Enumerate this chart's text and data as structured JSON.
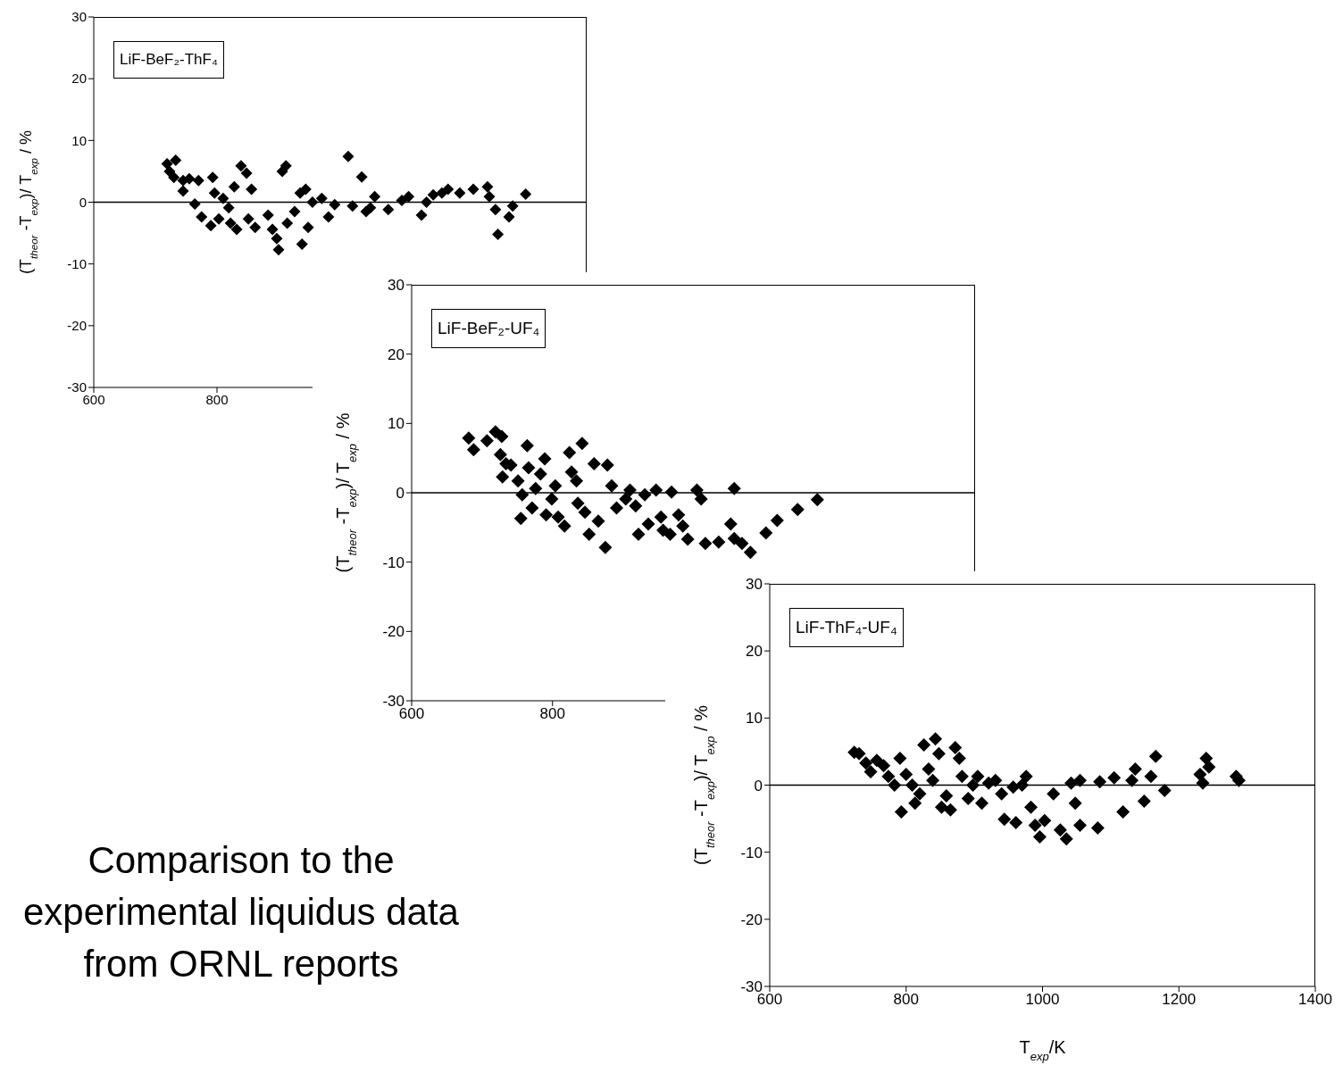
{
  "chart_data": [
    {
      "type": "scatter",
      "title": "LiF-BeF₂-ThF₄",
      "ylabel": "(T$_{theor}$ -T$_{exp}$)/ T$_{exp}$ / %",
      "color": "#000000",
      "marker": "diamond",
      "x": [
        719,
        733,
        723,
        730,
        745,
        755,
        770,
        745,
        764,
        775,
        793,
        796,
        790,
        803,
        810,
        819,
        828,
        822,
        832,
        839,
        848,
        856,
        862,
        851,
        883,
        890,
        897,
        900,
        906,
        912,
        914,
        926,
        935,
        944,
        938,
        948,
        955,
        970,
        981,
        991,
        1013,
        1020,
        1035,
        1042,
        1056,
        1049,
        1078,
        1100,
        1111,
        1132,
        1140,
        1151,
        1165,
        1175,
        1194,
        1216,
        1239,
        1242,
        1252,
        1256,
        1274,
        1280,
        1301
      ],
      "values": [
        6.2,
        6.8,
        5.0,
        4.0,
        3.5,
        3.8,
        3.5,
        1.8,
        -0.3,
        -2.4,
        4.0,
        1.5,
        -3.8,
        -2.7,
        0.6,
        -0.9,
        2.5,
        -3.4,
        -4.4,
        5.9,
        4.7,
        2.1,
        -4.1,
        -2.7,
        -2.1,
        -4.4,
        -5.9,
        -7.7,
        5.0,
        5.9,
        -3.4,
        -1.5,
        1.5,
        2.1,
        -6.8,
        -4.1,
        0,
        0.6,
        -2.4,
        -0.4,
        7.4,
        -0.6,
        4.1,
        -1.5,
        0.9,
        -0.9,
        -1.2,
        0.3,
        0.9,
        -2.1,
        0,
        1.2,
        1.5,
        2.1,
        1.5,
        2.1,
        2.5,
        0.9,
        -1.2,
        -5.2,
        -2.4,
        -0.6,
        1.3
      ],
      "xlim": [
        600,
        1400
      ],
      "xticks": [
        600,
        800
      ],
      "ylim": [
        -30,
        30
      ],
      "yticks": [
        -30,
        -20,
        -10,
        0,
        10,
        20,
        30
      ],
      "ref_lines": [
        {
          "axis": "y",
          "value": 0,
          "color": "#000000"
        }
      ],
      "annotations": [
        "Comparison to the experimental liquidus data from ORNL reports"
      ]
    },
    {
      "type": "scatter",
      "title": "LiF-BeF₂-UF₄",
      "ylabel": "(T$_{theor}$ -T$_{exp}$)/ T$_{exp}$ / %",
      "color": "#000000",
      "marker": "diamond",
      "x": [
        681,
        688,
        707,
        719,
        728,
        726,
        734,
        729,
        741,
        751,
        757,
        755,
        764,
        766,
        771,
        776,
        783,
        789,
        791,
        799,
        804,
        808,
        817,
        824,
        827,
        834,
        842,
        836,
        846,
        852,
        859,
        865,
        875,
        878,
        884,
        891,
        904,
        910,
        918,
        922,
        931,
        936,
        947,
        954,
        957,
        967,
        969,
        979,
        985,
        992,
        1005,
        1011,
        1017,
        1036,
        1053,
        1058,
        1058,
        1069,
        1081,
        1103,
        1119,
        1148,
        1176
      ],
      "values": [
        7.9,
        6.2,
        7.5,
        8.8,
        8.1,
        5.5,
        4.2,
        2.3,
        4.0,
        1.7,
        -0.3,
        -3.7,
        6.8,
        3.6,
        -2.2,
        0.6,
        2.7,
        4.9,
        -3.2,
        -0.9,
        1.0,
        -3.5,
        -4.8,
        5.8,
        3.0,
        1.7,
        7.1,
        -1.5,
        -2.8,
        -6.0,
        4.2,
        -4.1,
        -7.9,
        4.0,
        1.0,
        -2.2,
        -0.9,
        0.4,
        -1.9,
        -6.0,
        -0.3,
        -4.5,
        0.4,
        -3.5,
        -5.4,
        -6.0,
        0.1,
        -3.2,
        -4.8,
        -6.7,
        0.4,
        -0.9,
        -7.3,
        -7.1,
        -4.5,
        0.6,
        -6.6,
        -7.3,
        -8.6,
        -5.8,
        -4.0,
        -2.4,
        -1.0
      ],
      "xlim": [
        600,
        1400
      ],
      "xticks": [
        600,
        800
      ],
      "ylim": [
        -30,
        30
      ],
      "yticks": [
        -30,
        -20,
        -10,
        0,
        10,
        20,
        30
      ],
      "ref_lines": [
        {
          "axis": "y",
          "value": 0,
          "color": "#000000"
        }
      ]
    },
    {
      "type": "scatter",
      "title": "LiF-ThF₄-UF₄",
      "xlabel": "T$_{exp}$/K",
      "ylabel": "(T$_{theor}$ -T$_{exp}$)/ T$_{exp}$ / %",
      "color": "#000000",
      "marker": "diamond",
      "x": [
        724,
        731,
        741,
        748,
        757,
        767,
        774,
        783,
        791,
        793,
        800,
        809,
        813,
        820,
        826,
        833,
        839,
        843,
        848,
        852,
        859,
        865,
        872,
        878,
        882,
        891,
        898,
        905,
        911,
        921,
        931,
        940,
        944,
        957,
        961,
        970,
        976,
        983,
        989,
        996,
        1003,
        1016,
        1026,
        1035,
        1042,
        1048,
        1055,
        1055,
        1081,
        1084,
        1105,
        1118,
        1131,
        1136,
        1149,
        1159,
        1166,
        1179,
        1231,
        1235,
        1240,
        1244,
        1284,
        1288
      ],
      "values": [
        4.9,
        4.7,
        3.3,
        2.0,
        3.7,
        2.9,
        1.3,
        0,
        4.0,
        -4.0,
        1.6,
        0,
        -2.7,
        -1.3,
        6.0,
        2.4,
        0.7,
        6.9,
        4.7,
        -3.3,
        -1.6,
        -3.7,
        5.6,
        4.0,
        1.3,
        -2.0,
        0,
        1.3,
        -2.7,
        0.3,
        0.7,
        -1.3,
        -5.1,
        -0.3,
        -5.6,
        0,
        1.3,
        -3.3,
        -6.0,
        -7.7,
        -5.3,
        -1.3,
        -6.7,
        -8.0,
        0.3,
        -2.7,
        -6.0,
        0.7,
        -6.4,
        0.5,
        1.1,
        -4.0,
        0.7,
        2.4,
        -2.4,
        1.3,
        4.3,
        -0.8,
        1.6,
        0.3,
        4.0,
        2.7,
        1.3,
        0.7
      ],
      "xlim": [
        600,
        1400
      ],
      "xticks": [
        600,
        800,
        1000,
        1200,
        1400
      ],
      "ylim": [
        -30,
        30
      ],
      "yticks": [
        -30,
        -20,
        -10,
        0,
        10,
        20,
        30
      ],
      "ref_lines": [
        {
          "axis": "y",
          "value": 0,
          "color": "#000000"
        }
      ]
    }
  ]
}
